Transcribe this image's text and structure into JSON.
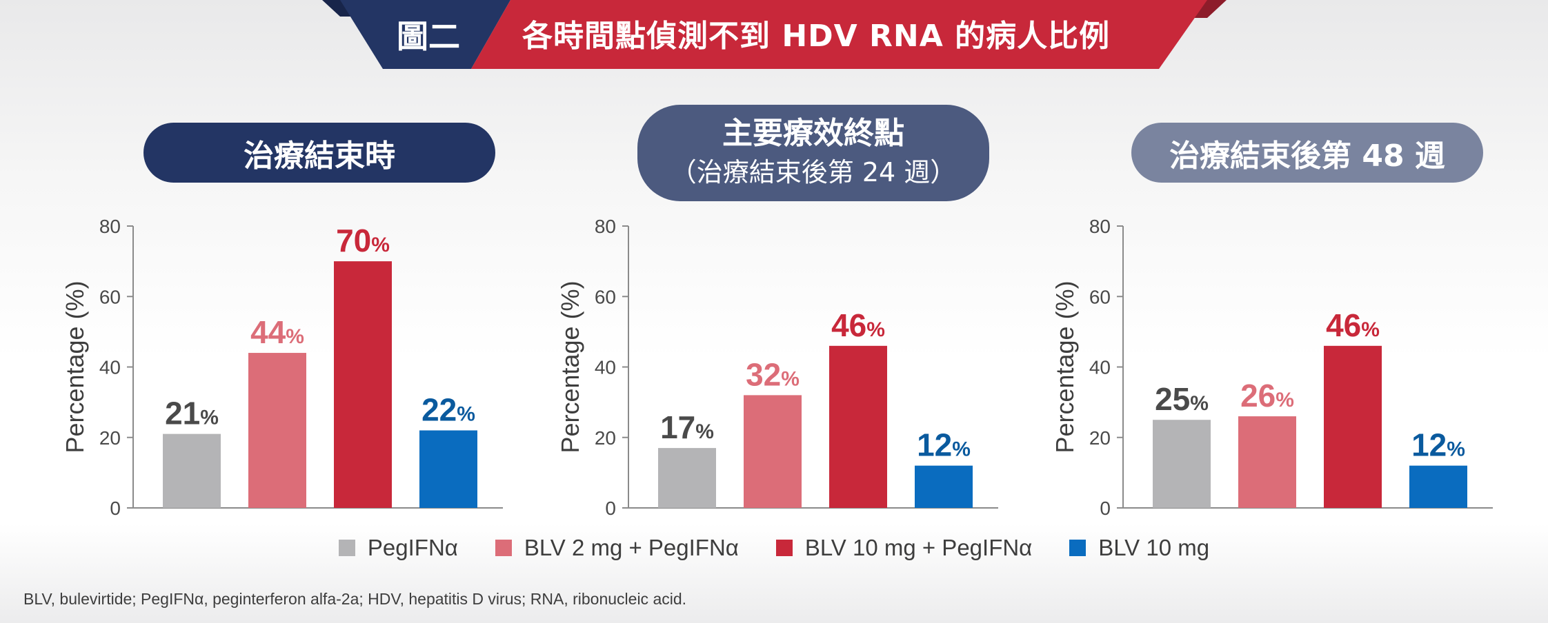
{
  "header": {
    "figure_label": "圖二",
    "title": "各時間點偵測不到 HDV RNA 的病人比例"
  },
  "colors": {
    "navy": "#233564",
    "red": "#c8283a",
    "gray": "#b4b4b6",
    "pink": "#dc6d78",
    "blue": "#0a6cbf"
  },
  "panels": [
    {
      "title": "治療結束時",
      "subtitle": ""
    },
    {
      "title": "主要療效終點",
      "subtitle": "（治療結束後第 24 週）"
    },
    {
      "title": "治療結束後第 48 週",
      "subtitle": ""
    }
  ],
  "chart_data": [
    {
      "type": "bar",
      "title": "治療結束時",
      "ylabel": "Percentage (%)",
      "ylim": [
        0,
        80
      ],
      "yticks": [
        0,
        20,
        40,
        60,
        80
      ],
      "categories": [
        "PegIFNα",
        "BLV 2 mg + PegIFNα",
        "BLV 10 mg + PegIFNα",
        "BLV 10 mg"
      ],
      "values": [
        21,
        44,
        70,
        22
      ],
      "data_labels": [
        "21",
        "44",
        "70",
        "22"
      ],
      "label_unit": "%",
      "grid": false
    },
    {
      "type": "bar",
      "title": "主要療效終點（治療結束後第 24 週）",
      "ylabel": "Percentage (%)",
      "ylim": [
        0,
        80
      ],
      "yticks": [
        0,
        20,
        40,
        60,
        80
      ],
      "categories": [
        "PegIFNα",
        "BLV 2 mg + PegIFNα",
        "BLV 10 mg + PegIFNα",
        "BLV 10 mg"
      ],
      "values": [
        17,
        32,
        46,
        12
      ],
      "data_labels": [
        "17",
        "32",
        "46",
        "12"
      ],
      "label_unit": "%",
      "grid": false
    },
    {
      "type": "bar",
      "title": "治療結束後第 48 週",
      "ylabel": "Percentage (%)",
      "ylim": [
        0,
        80
      ],
      "yticks": [
        0,
        20,
        40,
        60,
        80
      ],
      "categories": [
        "PegIFNα",
        "BLV 2 mg + PegIFNα",
        "BLV 10 mg + PegIFNα",
        "BLV 10 mg"
      ],
      "values": [
        25,
        26,
        46,
        12
      ],
      "data_labels": [
        "25",
        "26",
        "46",
        "12"
      ],
      "label_unit": "%",
      "grid": false
    }
  ],
  "legend": {
    "placement": "bottom-center",
    "items": [
      {
        "label": "PegIFNα",
        "color": "#b4b4b6",
        "label_color": "#4a4a4a"
      },
      {
        "label": "BLV 2 mg + PegIFNα",
        "color": "#dc6d78",
        "label_color": "#dc6d78"
      },
      {
        "label": "BLV 10 mg + PegIFNα",
        "color": "#c8283a",
        "label_color": "#c8283a"
      },
      {
        "label": "BLV 10 mg",
        "color": "#0a6cbf",
        "label_color": "#0a5a9e"
      }
    ]
  },
  "footnote": "BLV, bulevirtide; PegIFNα, peginterferon alfa-2a; HDV, hepatitis D virus; RNA, ribonucleic acid."
}
